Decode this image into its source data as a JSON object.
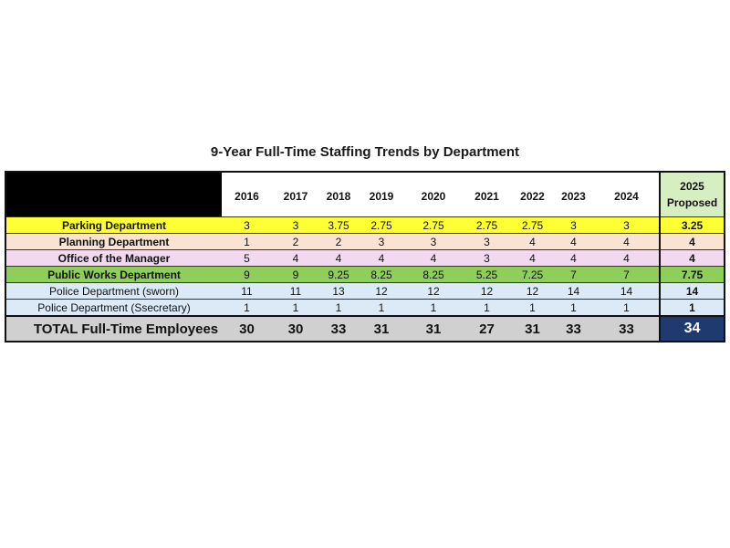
{
  "title": "9-Year Full-Time Staffing Trends by Department",
  "columns": {
    "years": [
      "2016",
      "2017",
      "2018",
      "2019",
      "2020",
      "2021",
      "2022",
      "2023",
      "2024"
    ],
    "proposed_year": "2025",
    "proposed_label": "Proposed"
  },
  "rows": [
    {
      "department": "Parking Department",
      "values": [
        "3",
        "3",
        "3.75",
        "2.75",
        "2.75",
        "2.75",
        "2.75",
        "3",
        "3"
      ],
      "proposed": "3.25",
      "color": "#ffff33"
    },
    {
      "department": "Planning Department",
      "values": [
        "1",
        "2",
        "2",
        "3",
        "3",
        "3",
        "4",
        "4",
        "4"
      ],
      "proposed": "4",
      "color": "#fbe3d4"
    },
    {
      "department": "Office of the Manager",
      "values": [
        "5",
        "4",
        "4",
        "4",
        "4",
        "3",
        "4",
        "4",
        "4"
      ],
      "proposed": "4",
      "color": "#f2d9f0"
    },
    {
      "department": "Public Works Department",
      "values": [
        "9",
        "9",
        "9.25",
        "8.25",
        "8.25",
        "5.25",
        "7.25",
        "7",
        "7"
      ],
      "proposed": "7.75",
      "color": "#8fce5a"
    },
    {
      "department": "Police Department (sworn)",
      "values": [
        "11",
        "11",
        "13",
        "12",
        "12",
        "12",
        "12",
        "14",
        "14"
      ],
      "proposed": "14",
      "color": "#dceaf7"
    },
    {
      "department": "Police Department (Ssecretary)",
      "values": [
        "1",
        "1",
        "1",
        "1",
        "1",
        "1",
        "1",
        "1",
        "1"
      ],
      "proposed": "1",
      "color": "#dceaf7"
    }
  ],
  "total": {
    "label": "TOTAL Full-Time Employees",
    "values": [
      "30",
      "30",
      "33",
      "31",
      "31",
      "27",
      "31",
      "33",
      "33"
    ],
    "proposed": "34"
  }
}
